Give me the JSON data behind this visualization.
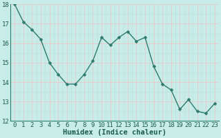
{
  "x": [
    0,
    1,
    2,
    3,
    4,
    5,
    6,
    7,
    8,
    9,
    10,
    11,
    12,
    13,
    14,
    15,
    16,
    17,
    18,
    19,
    20,
    21,
    22,
    23
  ],
  "y": [
    18.0,
    17.1,
    16.7,
    16.2,
    15.0,
    14.4,
    13.9,
    13.9,
    14.4,
    15.1,
    16.3,
    15.9,
    16.3,
    16.6,
    16.1,
    16.3,
    14.8,
    13.9,
    13.6,
    12.6,
    13.1,
    12.5,
    12.4,
    12.9
  ],
  "line_color": "#2d7a6e",
  "marker_color": "#2d7a6e",
  "bg_color": "#c8ece8",
  "grid_major_color": "#e8c8c8",
  "grid_minor_color": "#b8ddd8",
  "xlabel": "Humidex (Indice chaleur)",
  "ylim": [
    12,
    18
  ],
  "xlim": [
    -0.5,
    23.5
  ],
  "yticks": [
    12,
    13,
    14,
    15,
    16,
    17,
    18
  ],
  "xticks": [
    0,
    1,
    2,
    3,
    4,
    5,
    6,
    7,
    8,
    9,
    10,
    11,
    12,
    13,
    14,
    15,
    16,
    17,
    18,
    19,
    20,
    21,
    22,
    23
  ],
  "xlabel_fontsize": 7.5,
  "tick_fontsize": 6.5,
  "line_width": 1.0,
  "marker_size": 2.5
}
